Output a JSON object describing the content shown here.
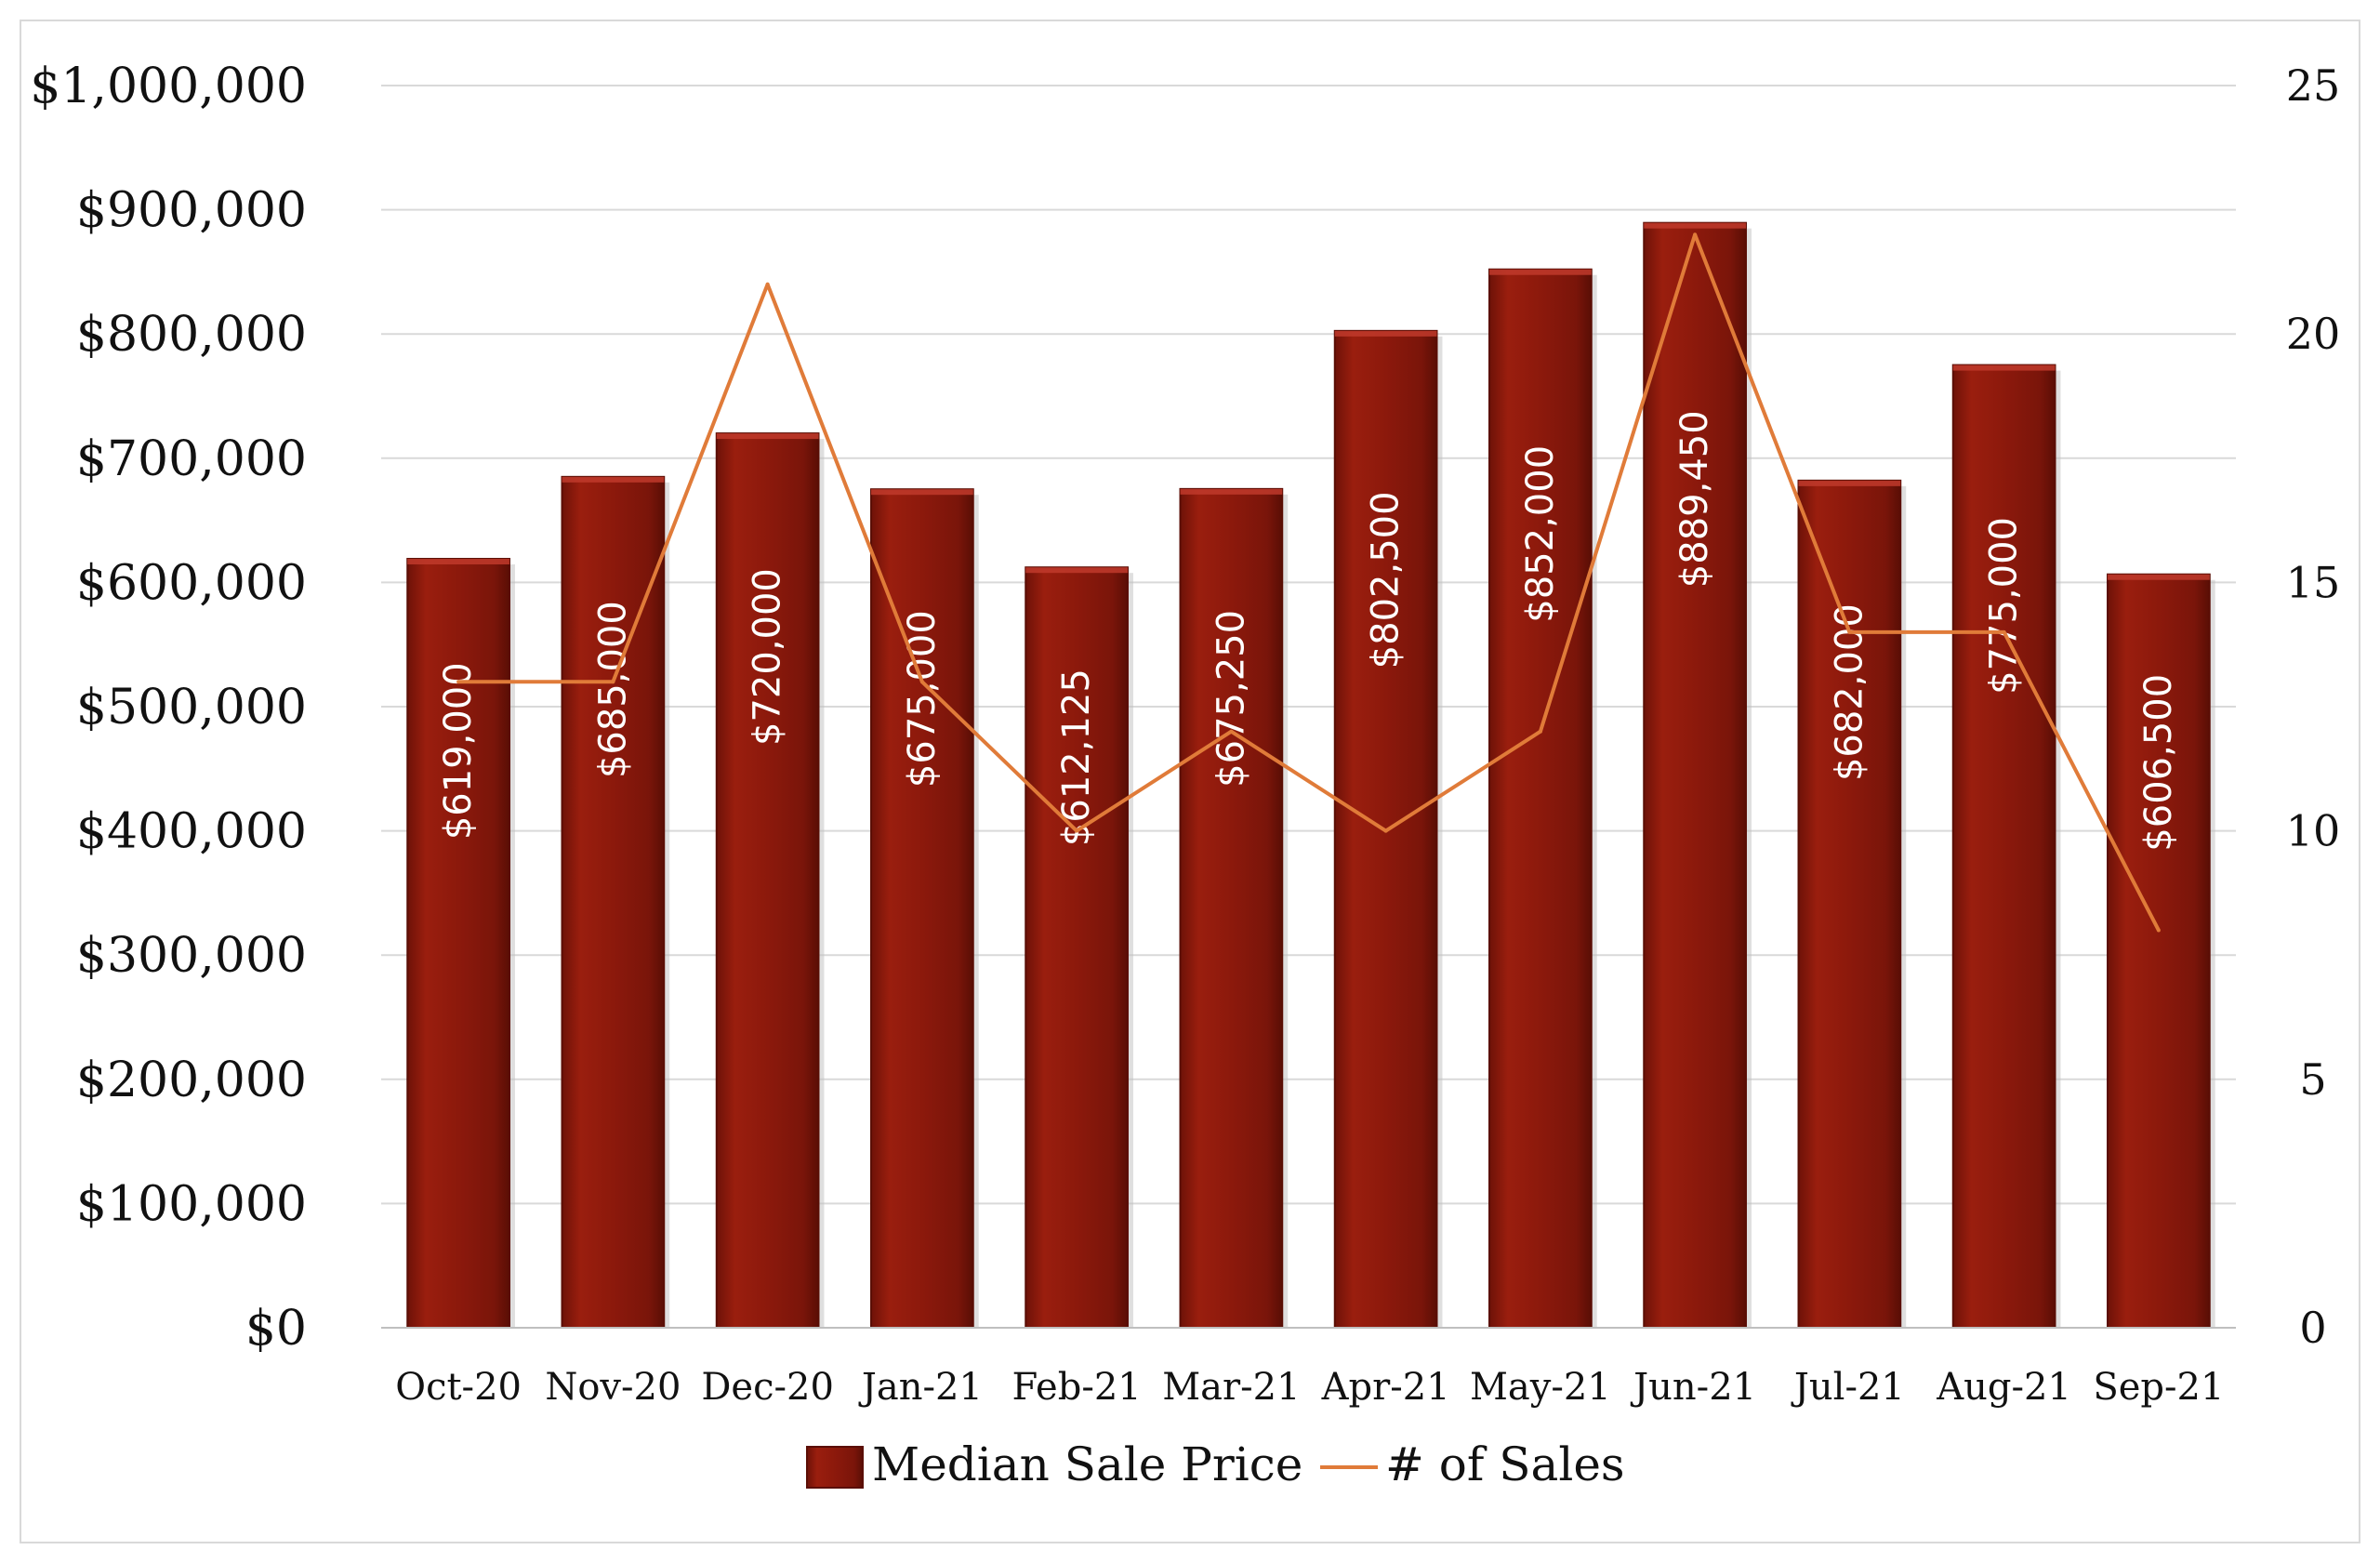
{
  "chart_data": {
    "type": "bar",
    "categories": [
      "Oct-20",
      "Nov-20",
      "Dec-20",
      "Jan-21",
      "Feb-21",
      "Mar-21",
      "Apr-21",
      "May-21",
      "Jun-21",
      "Jul-21",
      "Aug-21",
      "Sep-21"
    ],
    "series": [
      {
        "name": "Median Sale Price",
        "type": "bar",
        "axis": "left",
        "color": "#8b1a0c",
        "values": [
          619000,
          685000,
          720000,
          675000,
          612125,
          675250,
          802500,
          852000,
          889450,
          682000,
          775000,
          606500
        ],
        "data_labels": [
          "$619,000",
          "$685,000",
          "$720,000",
          "$675,000",
          "$612,125",
          "$675,250",
          "$802,500",
          "$852,000",
          "$889,450",
          "$682,000",
          "$775,000",
          "$606,500"
        ]
      },
      {
        "name": "# of Sales",
        "type": "line",
        "axis": "right",
        "color": "#e07b39",
        "values": [
          13,
          13,
          21,
          13,
          10,
          12,
          10,
          12,
          22,
          14,
          14,
          8
        ]
      }
    ],
    "y_axis": {
      "min": 0,
      "max": 1000000,
      "ticks": [
        0,
        100000,
        200000,
        300000,
        400000,
        500000,
        600000,
        700000,
        800000,
        900000,
        1000000
      ],
      "tick_labels": [
        "$0",
        "$100,000",
        "$200,000",
        "$300,000",
        "$400,000",
        "$500,000",
        "$600,000",
        "$700,000",
        "$800,000",
        "$900,000",
        "$1,000,000"
      ]
    },
    "y2_axis": {
      "min": 0,
      "max": 25,
      "ticks": [
        0,
        5,
        10,
        15,
        20,
        25
      ],
      "tick_labels": [
        "0",
        "5",
        "10",
        "15",
        "20",
        "25"
      ]
    },
    "grid": true,
    "legend": {
      "position": "bottom",
      "entries": [
        "Median Sale Price",
        "# of Sales"
      ]
    }
  }
}
